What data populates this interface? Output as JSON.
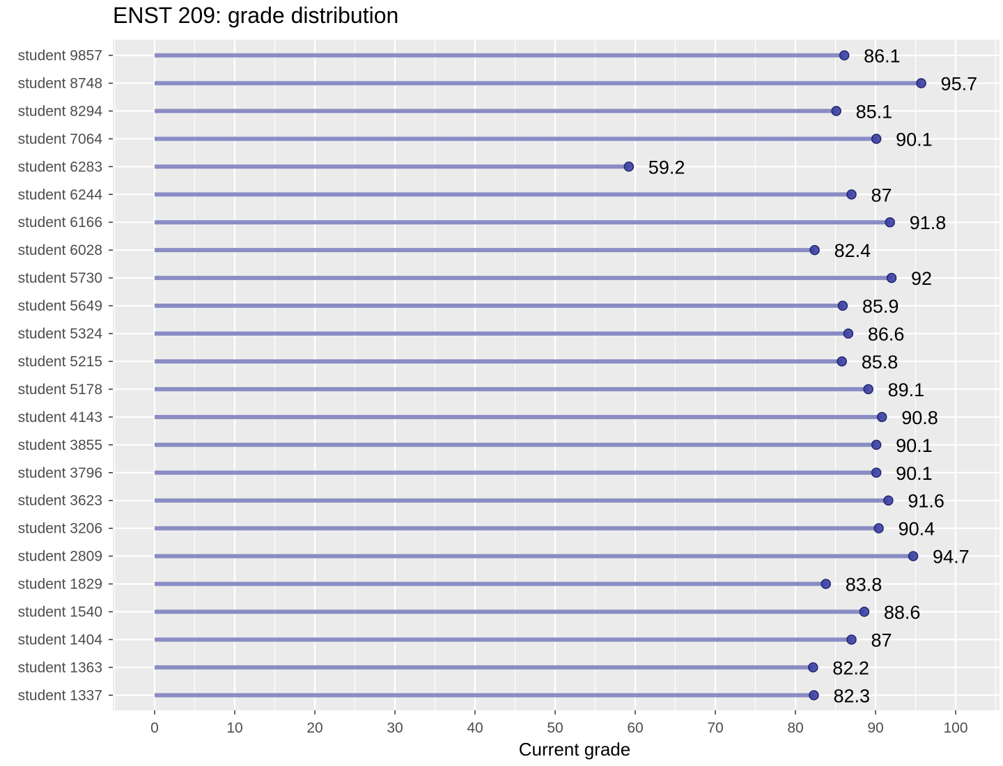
{
  "chart_data": {
    "type": "lollipop",
    "title": "ENST 209: grade distribution",
    "xlabel": "Current grade",
    "ylabel": "",
    "xlim": [
      0,
      100
    ],
    "x_ticks": [
      0,
      10,
      20,
      30,
      40,
      50,
      60,
      70,
      80,
      90,
      100
    ],
    "orientation": "horizontal",
    "grid": true,
    "legend": "none",
    "colors": {
      "panel_background": "#ebebeb",
      "grid": "#ffffff",
      "stem": "#8a8cc4",
      "point": "#3b40a3",
      "point_stroke": "#1f2470"
    },
    "categories": [
      "student 9857",
      "student 8748",
      "student 8294",
      "student 7064",
      "student 6283",
      "student 6244",
      "student 6166",
      "student 6028",
      "student 5730",
      "student 5649",
      "student 5324",
      "student 5215",
      "student 5178",
      "student 4143",
      "student 3855",
      "student 3796",
      "student 3623",
      "student 3206",
      "student 2809",
      "student 1829",
      "student 1540",
      "student 1404",
      "student 1363",
      "student 1337"
    ],
    "values": [
      86.1,
      95.7,
      85.1,
      90.1,
      59.2,
      87,
      91.8,
      82.4,
      92,
      85.9,
      86.6,
      85.8,
      89.1,
      90.8,
      90.1,
      90.1,
      91.6,
      90.4,
      94.7,
      83.8,
      88.6,
      87,
      82.2,
      82.3
    ],
    "value_labels": [
      "86.1",
      "95.7",
      "85.1",
      "90.1",
      "59.2",
      "87",
      "91.8",
      "82.4",
      "92",
      "85.9",
      "86.6",
      "85.8",
      "89.1",
      "90.8",
      "90.1",
      "90.1",
      "91.6",
      "90.4",
      "94.7",
      "83.8",
      "88.6",
      "87",
      "82.2",
      "82.3"
    ]
  }
}
